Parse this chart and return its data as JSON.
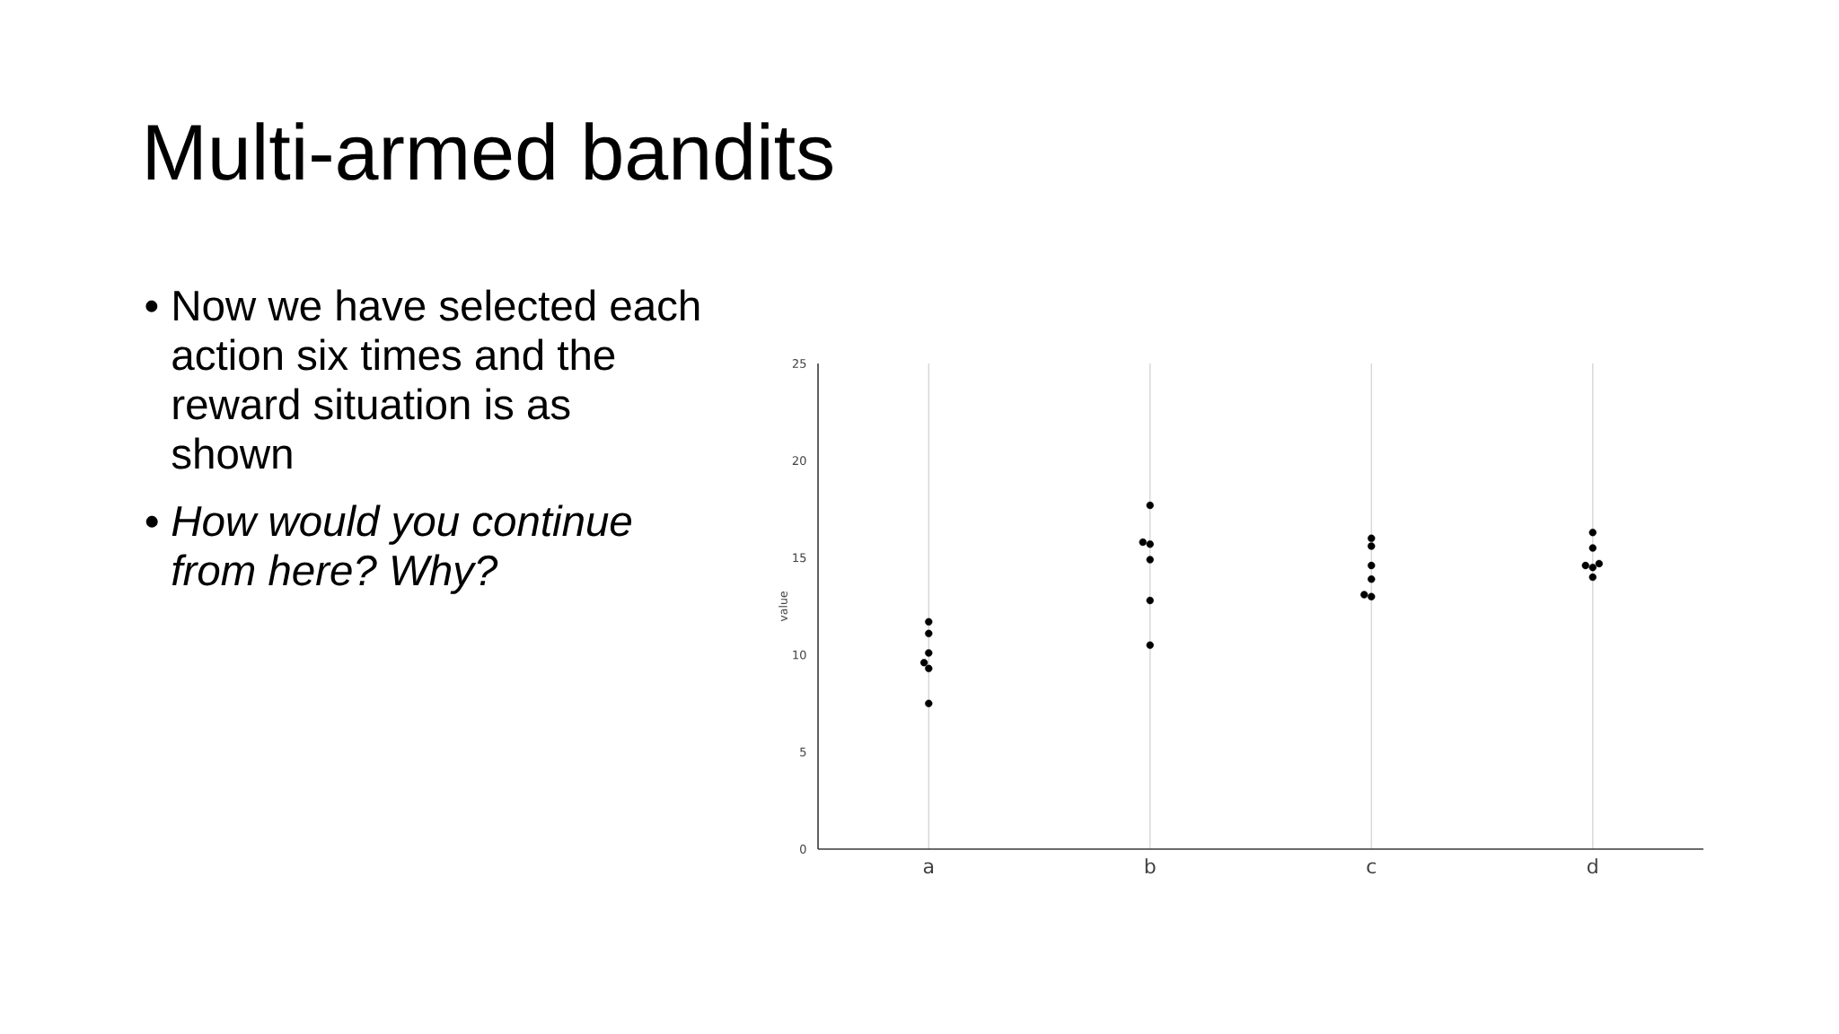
{
  "chart_data": {
    "type": "scatter",
    "title": "Multi-armed bandits",
    "annotations": [
      "• Now we have selected each action six times and the reward situation is as shown",
      "• How would you continue from here? Why?"
    ],
    "ylabel": "value",
    "categories": [
      "a",
      "b",
      "c",
      "d"
    ],
    "series": [
      {
        "color": "#000000",
        "x": [
          "a",
          "a",
          "a",
          "a",
          "a",
          "a",
          "b",
          "b",
          "b",
          "b",
          "b",
          "b",
          "c",
          "c",
          "c",
          "c",
          "c",
          "c",
          "d",
          "d",
          "d",
          "d",
          "d",
          "d"
        ],
        "values": [
          11.7,
          11.1,
          10.1,
          9.6,
          9.3,
          7.5,
          17.7,
          15.8,
          15.7,
          14.9,
          12.8,
          10.5,
          16.0,
          15.6,
          14.6,
          13.9,
          13.1,
          13.0,
          16.3,
          15.5,
          14.7,
          14.6,
          14.5,
          14.0
        ]
      }
    ],
    "ylim": [
      0,
      25
    ],
    "yticks": [
      0,
      5,
      10,
      15,
      20,
      25
    ],
    "grid": "x",
    "marker": "circle"
  }
}
